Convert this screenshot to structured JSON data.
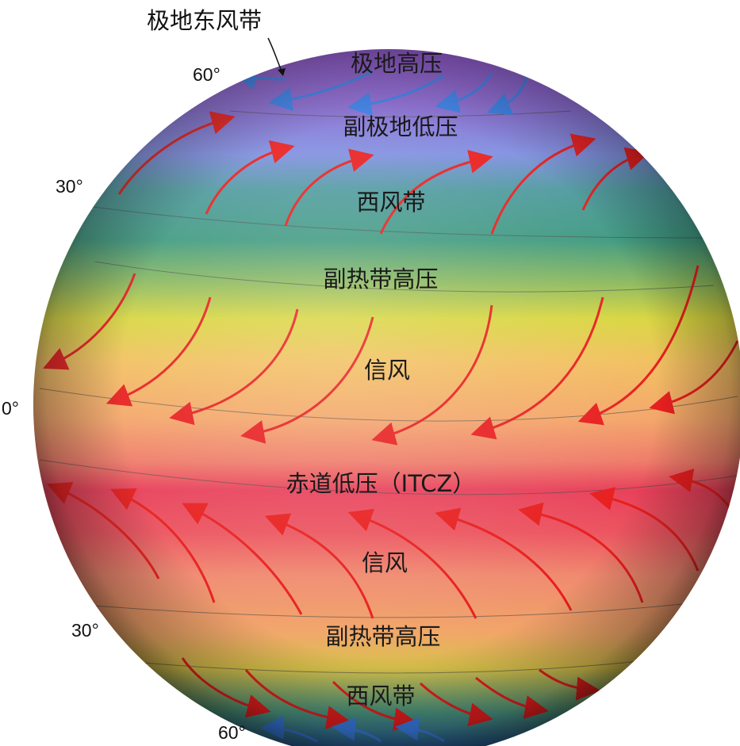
{
  "callout": {
    "label": "极地东风带"
  },
  "latitudes": {
    "north_60": "60°",
    "north_30": "30°",
    "equator": "0°",
    "south_30": "30°",
    "south_60": "60°"
  },
  "zones": {
    "polar_high": "极地高压",
    "subpolar_low_north": "副极地低压",
    "westerlies_north": "西风带",
    "subtropical_high_north": "副热带高压",
    "trades_north": "信风",
    "itcz": "赤道低压（ITCZ）",
    "trades_south": "信风",
    "subtropical_high_south": "副热带高压",
    "westerlies_south": "西风带"
  },
  "colors": {
    "polar": "#8a5cc8",
    "subpolar": "#7f8fe0",
    "westerly": "#3f9a80",
    "subtropical": "#d9d640",
    "trade": "#f2a060",
    "itcz": "#e8405a",
    "wind_arrow": "#e81e1e",
    "polar_arrow": "#3a7fe8"
  }
}
